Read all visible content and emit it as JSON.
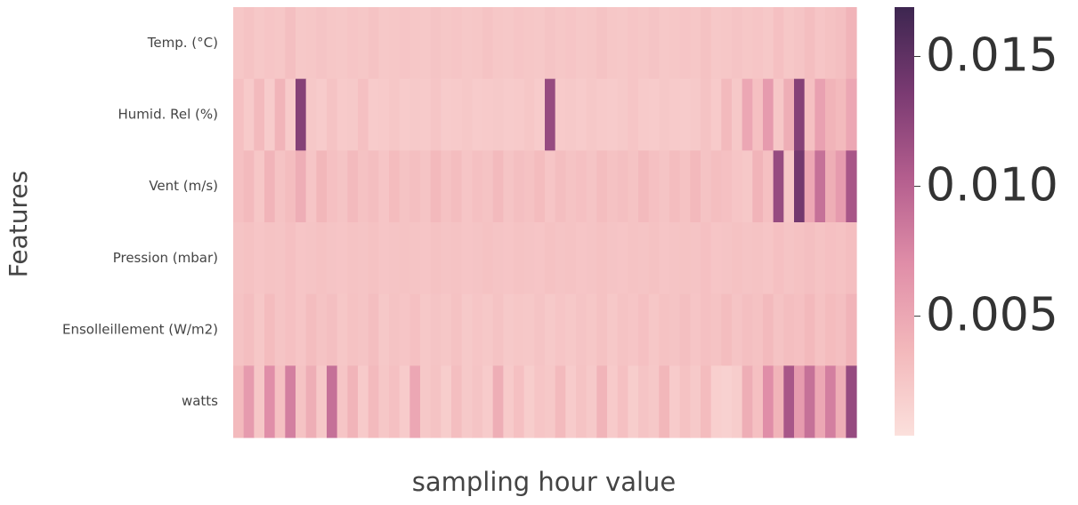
{
  "chart_data": {
    "type": "heatmap",
    "ylabel": "Features",
    "xlabel": "sampling hour value",
    "rows": [
      "Temp. (°C)",
      "Humid. Rel (%)",
      "Vent (m/s)",
      "Pression (mbar)",
      "Ensolleillement (W/m2)",
      "watts"
    ],
    "colormap": [
      "#fbe0dc",
      "#f3b8bb",
      "#e08ea8",
      "#b45e8e",
      "#7a3a72",
      "#3d2650"
    ],
    "zlim": [
      0.0004,
      0.0169
    ],
    "zticks": [
      0.005,
      0.01,
      0.015
    ],
    "z": [
      [
        0.0025,
        0.0028,
        0.0024,
        0.0026,
        0.0025,
        0.0031,
        0.0024,
        0.0025,
        0.0027,
        0.0025,
        0.0024,
        0.0026,
        0.0025,
        0.0028,
        0.0024,
        0.0025,
        0.0026,
        0.0025,
        0.0024,
        0.0027,
        0.0025,
        0.0026,
        0.0024,
        0.0025,
        0.0028,
        0.0025,
        0.0024,
        0.0026,
        0.0025,
        0.0024,
        0.0027,
        0.0025,
        0.0026,
        0.0024,
        0.0025,
        0.0028,
        0.0025,
        0.0024,
        0.0026,
        0.0025,
        0.0027,
        0.0024,
        0.0025,
        0.0026,
        0.0025,
        0.0029,
        0.0024,
        0.0025,
        0.0027,
        0.0025,
        0.0026,
        0.0024,
        0.003,
        0.0025,
        0.0027,
        0.0032,
        0.0026,
        0.0029,
        0.0031,
        0.004
      ],
      [
        0.003,
        0.0022,
        0.0035,
        0.0021,
        0.004,
        0.0022,
        0.013,
        0.0024,
        0.0021,
        0.0028,
        0.0022,
        0.0023,
        0.003,
        0.0021,
        0.0022,
        0.0025,
        0.0021,
        0.0023,
        0.0022,
        0.0026,
        0.0021,
        0.0022,
        0.0024,
        0.0021,
        0.0022,
        0.0023,
        0.0021,
        0.0022,
        0.0025,
        0.0021,
        0.012,
        0.0022,
        0.0023,
        0.0021,
        0.0024,
        0.0022,
        0.0021,
        0.0023,
        0.0026,
        0.0022,
        0.0021,
        0.0024,
        0.0022,
        0.0021,
        0.0023,
        0.0028,
        0.0022,
        0.0035,
        0.0024,
        0.005,
        0.003,
        0.006,
        0.0025,
        0.0045,
        0.013,
        0.003,
        0.0055,
        0.004,
        0.0035,
        0.005
      ],
      [
        0.003,
        0.0035,
        0.0025,
        0.004,
        0.0028,
        0.0033,
        0.0045,
        0.0026,
        0.0038,
        0.003,
        0.0027,
        0.0035,
        0.0029,
        0.0032,
        0.0026,
        0.0034,
        0.0028,
        0.0031,
        0.0027,
        0.0036,
        0.0029,
        0.0033,
        0.0026,
        0.003,
        0.0028,
        0.0035,
        0.0027,
        0.0031,
        0.0029,
        0.0034,
        0.0026,
        0.0032,
        0.0028,
        0.003,
        0.0027,
        0.0033,
        0.0029,
        0.0031,
        0.0028,
        0.0035,
        0.003,
        0.0027,
        0.0033,
        0.0029,
        0.0036,
        0.0028,
        0.0032,
        0.003,
        0.0026,
        0.0024,
        0.004,
        0.003,
        0.012,
        0.0025,
        0.014,
        0.005,
        0.009,
        0.0045,
        0.006,
        0.011
      ],
      [
        0.0027,
        0.0029,
        0.0026,
        0.0028,
        0.0027,
        0.003,
        0.0026,
        0.0027,
        0.0029,
        0.0027,
        0.0026,
        0.0028,
        0.0027,
        0.0029,
        0.0026,
        0.0027,
        0.0028,
        0.0027,
        0.0026,
        0.0029,
        0.0027,
        0.0028,
        0.0026,
        0.0027,
        0.0029,
        0.0027,
        0.0026,
        0.0028,
        0.0027,
        0.0026,
        0.0029,
        0.0027,
        0.0028,
        0.0026,
        0.0027,
        0.0029,
        0.0027,
        0.0026,
        0.0028,
        0.0027,
        0.0029,
        0.0026,
        0.0027,
        0.0028,
        0.0027,
        0.003,
        0.0026,
        0.0027,
        0.0029,
        0.0027,
        0.0028,
        0.0026,
        0.003,
        0.0027,
        0.0029,
        0.0031,
        0.0028,
        0.003,
        0.0029,
        0.0032
      ],
      [
        0.0028,
        0.0032,
        0.0025,
        0.0034,
        0.0027,
        0.003,
        0.0026,
        0.0033,
        0.0028,
        0.0031,
        0.0025,
        0.0029,
        0.0027,
        0.0032,
        0.0024,
        0.0028,
        0.0026,
        0.003,
        0.0024,
        0.0027,
        0.0025,
        0.0029,
        0.0023,
        0.0026,
        0.0024,
        0.0028,
        0.0023,
        0.0025,
        0.0024,
        0.0027,
        0.0023,
        0.0026,
        0.0024,
        0.0027,
        0.0025,
        0.0029,
        0.0024,
        0.0028,
        0.0026,
        0.003,
        0.0025,
        0.0029,
        0.0027,
        0.0031,
        0.0026,
        0.003,
        0.0028,
        0.0033,
        0.0027,
        0.0031,
        0.0029,
        0.0035,
        0.0028,
        0.0032,
        0.003,
        0.0036,
        0.0029,
        0.0034,
        0.0031,
        0.004
      ],
      [
        0.0035,
        0.006,
        0.0025,
        0.007,
        0.003,
        0.008,
        0.0028,
        0.0045,
        0.0024,
        0.009,
        0.0026,
        0.004,
        0.0022,
        0.0035,
        0.0025,
        0.003,
        0.0021,
        0.005,
        0.0024,
        0.0028,
        0.002,
        0.0032,
        0.0023,
        0.0027,
        0.0021,
        0.0045,
        0.0022,
        0.003,
        0.002,
        0.0026,
        0.0024,
        0.0035,
        0.0021,
        0.0028,
        0.0023,
        0.004,
        0.0022,
        0.003,
        0.002,
        0.0027,
        0.0024,
        0.0038,
        0.0021,
        0.0029,
        0.0023,
        0.0034,
        0.0018,
        0.0016,
        0.002,
        0.0045,
        0.003,
        0.007,
        0.004,
        0.011,
        0.006,
        0.009,
        0.005,
        0.008,
        0.0045,
        0.012
      ]
    ]
  }
}
